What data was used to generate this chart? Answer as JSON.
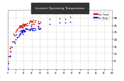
{
  "title": "Inverter Operating Temperature",
  "bg_color": "#ffffff",
  "plot_bg": "#ffffff",
  "header_bg": "#222222",
  "grid_color": "#aaaaaa",
  "ylim": [
    0,
    55
  ],
  "yticks": [
    8,
    15,
    21,
    28,
    35,
    41,
    48
  ],
  "xlim_days": 100,
  "legend_labels": [
    "Max Temp",
    "Min Temp"
  ],
  "legend_colors": [
    "#dd0000",
    "#0000dd"
  ],
  "dot_size": 1.5
}
